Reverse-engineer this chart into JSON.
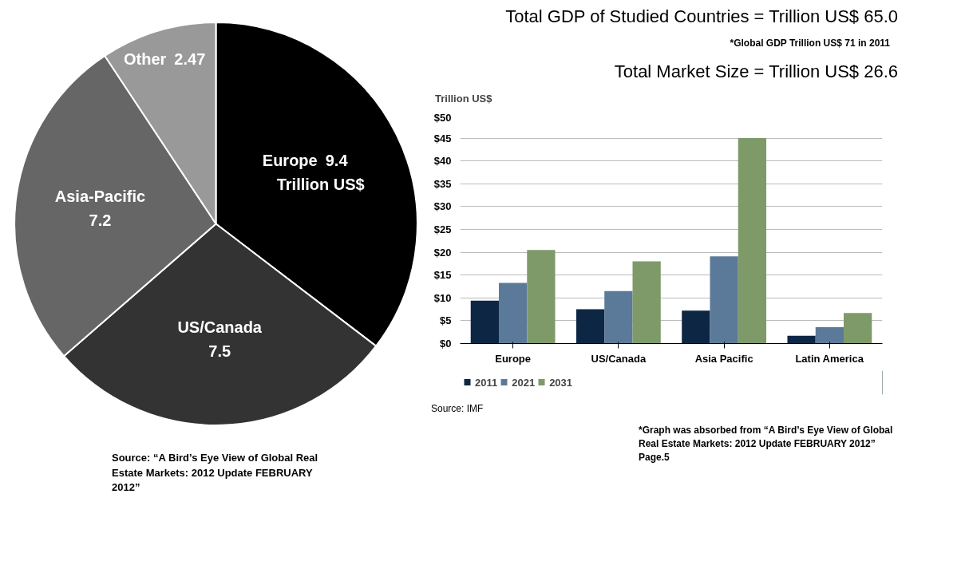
{
  "chart_data": [
    {
      "type": "pie",
      "categories": [
        "Europe",
        "US/Canada",
        "Asia-Pacific",
        "Other"
      ],
      "values": [
        9.4,
        7.5,
        7.2,
        2.47
      ],
      "colors": [
        "#000000",
        "#333333",
        "#666666",
        "#999999"
      ],
      "data_labels": true,
      "annotations": [
        {
          "text": "Trillion US$",
          "x": "Europe"
        },
        "Source: “A Bird’s Eye View of Global Real Estate Markets: 2012 Update FEBRUARY 2012”"
      ]
    },
    {
      "type": "bar",
      "title": "Total GDP of Studied Countries = Trillion US$ 65.0",
      "subtitle": "*Global GDP Trillion US$ 71 in 2011",
      "ylabel": "Trillion US$",
      "categories": [
        "Europe",
        "US/Canada",
        "Asia Pacific",
        "Latin America"
      ],
      "series": [
        {
          "name": "2011",
          "color": "#0d2644",
          "values": [
            9.4,
            7.5,
            7.2,
            1.7
          ]
        },
        {
          "name": "2021",
          "color": "#5b7a99",
          "values": [
            13.3,
            11.5,
            19.1,
            3.6
          ]
        },
        {
          "name": "2031",
          "color": "#7e9a68",
          "values": [
            20.5,
            18.0,
            45.0,
            6.7
          ]
        }
      ],
      "ylim": [
        0,
        50
      ],
      "yticks": [
        {
          "value": 0,
          "label": "$0"
        },
        {
          "value": 5,
          "label": "$5"
        },
        {
          "value": 10,
          "label": "$10"
        },
        {
          "value": 15,
          "label": "$15"
        },
        {
          "value": 20,
          "label": "$20"
        },
        {
          "value": 25,
          "label": "$25"
        },
        {
          "value": 30,
          "label": "$30"
        },
        {
          "value": 35,
          "label": "$35"
        },
        {
          "value": 40,
          "label": "$40"
        },
        {
          "value": 45,
          "label": "$45"
        },
        {
          "value": 50,
          "label": "$50"
        }
      ],
      "grid": "y",
      "legend": "bottom",
      "annotations": [
        "Total Market Size = Trillion US$ 26.6",
        "Source: IMF",
        "*Graph was absorbed from “A Bird’s Eye View of Global Real Estate Markets: 2012 Update FEBRUARY 2012” Page.5"
      ]
    }
  ]
}
